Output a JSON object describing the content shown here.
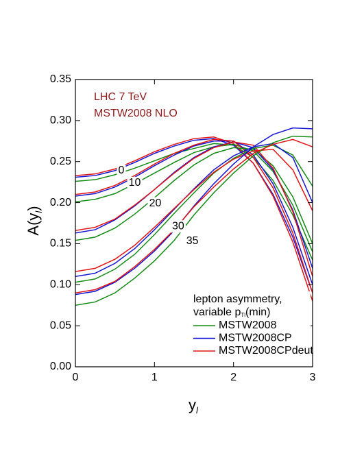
{
  "chart_data": {
    "type": "line",
    "annotations": [
      "LHC 7 TeV",
      "MSTW2008 NLO"
    ],
    "x_label": {
      "main": "y",
      "sub": "l"
    },
    "y_label": {
      "main": "A(y",
      "sub": "l",
      "end": ")"
    },
    "legend_title": [
      "lepton asymmetry,",
      "variable p",
      "Tl",
      "(min)"
    ],
    "curve_labels": [
      {
        "text": "0",
        "x": 0.58,
        "y": 0.239
      },
      {
        "text": "10",
        "x": 0.75,
        "y": 0.224
      },
      {
        "text": "20",
        "x": 1.01,
        "y": 0.199
      },
      {
        "text": "30",
        "x": 1.3,
        "y": 0.171
      },
      {
        "text": "35",
        "x": 1.48,
        "y": 0.153
      }
    ],
    "x": [
      0,
      0.25,
      0.5,
      0.75,
      1,
      1.25,
      1.5,
      1.75,
      2,
      2.25,
      2.5,
      2.75,
      3
    ],
    "xlim": [
      0,
      3
    ],
    "xticks": [
      0,
      1,
      2,
      3
    ],
    "ylim": [
      0,
      0.35
    ],
    "yticks": [
      {
        "value": 0,
        "label": "0.00"
      },
      {
        "value": 0.05,
        "label": "0.05"
      },
      {
        "value": 0.1,
        "label": "0.10"
      },
      {
        "value": 0.15,
        "label": "0.15"
      },
      {
        "value": 0.2,
        "label": "0.20"
      },
      {
        "value": 0.25,
        "label": "0.25"
      },
      {
        "value": 0.3,
        "label": "0.30"
      },
      {
        "value": 0.35,
        "label": "0.35"
      }
    ],
    "series": [
      {
        "name": "MSTW2008",
        "color": "#138a13",
        "values": [
          0.226,
          0.228,
          0.234,
          0.242,
          0.251,
          0.26,
          0.266,
          0.272,
          0.27,
          0.255,
          0.227,
          0.185,
          0.13
        ]
      },
      {
        "name": "MSTW2008CP",
        "color": "#1414d2",
        "values": [
          0.231,
          0.233,
          0.239,
          0.249,
          0.26,
          0.269,
          0.276,
          0.278,
          0.27,
          0.248,
          0.21,
          0.158,
          0.09
        ]
      },
      {
        "name": "MSTW2008CPdeut",
        "color": "#e01414",
        "values": [
          0.233,
          0.235,
          0.241,
          0.251,
          0.262,
          0.271,
          0.278,
          0.28,
          0.272,
          0.248,
          0.208,
          0.152,
          0.08
        ]
      },
      {
        "name": "MSTW2008",
        "color": "#138a13",
        "values": [
          0.201,
          0.204,
          0.211,
          0.223,
          0.236,
          0.249,
          0.261,
          0.268,
          0.271,
          0.263,
          0.238,
          0.197,
          0.14
        ]
      },
      {
        "name": "MSTW2008CP",
        "color": "#1414d2",
        "values": [
          0.208,
          0.211,
          0.219,
          0.231,
          0.245,
          0.258,
          0.269,
          0.275,
          0.275,
          0.258,
          0.223,
          0.17,
          0.1
        ]
      },
      {
        "name": "MSTW2008CPdeut",
        "color": "#e01414",
        "values": [
          0.21,
          0.213,
          0.221,
          0.233,
          0.247,
          0.26,
          0.27,
          0.277,
          0.275,
          0.255,
          0.218,
          0.163,
          0.09
        ]
      },
      {
        "name": "MSTW2008",
        "color": "#138a13",
        "values": [
          0.154,
          0.158,
          0.169,
          0.186,
          0.206,
          0.227,
          0.246,
          0.26,
          0.267,
          0.265,
          0.245,
          0.207,
          0.15
        ]
      },
      {
        "name": "MSTW2008CP",
        "color": "#1414d2",
        "values": [
          0.163,
          0.167,
          0.179,
          0.196,
          0.216,
          0.237,
          0.255,
          0.268,
          0.274,
          0.267,
          0.24,
          0.191,
          0.12
        ]
      },
      {
        "name": "MSTW2008CPdeut",
        "color": "#e01414",
        "values": [
          0.166,
          0.17,
          0.18,
          0.197,
          0.216,
          0.236,
          0.254,
          0.267,
          0.274,
          0.27,
          0.242,
          0.189,
          0.11
        ]
      },
      {
        "name": "MSTW2008",
        "color": "#138a13",
        "values": [
          0.103,
          0.107,
          0.119,
          0.137,
          0.161,
          0.187,
          0.212,
          0.236,
          0.254,
          0.266,
          0.27,
          0.258,
          0.22
        ]
      },
      {
        "name": "MSTW2008CP",
        "color": "#1414d2",
        "values": [
          0.11,
          0.114,
          0.126,
          0.144,
          0.167,
          0.192,
          0.217,
          0.24,
          0.257,
          0.268,
          0.272,
          0.255,
          0.2
        ]
      },
      {
        "name": "MSTW2008CPdeut",
        "color": "#e01414",
        "values": [
          0.116,
          0.12,
          0.131,
          0.148,
          0.17,
          0.193,
          0.216,
          0.237,
          0.253,
          0.263,
          0.265,
          0.24,
          0.19
        ]
      },
      {
        "name": "MSTW2008",
        "color": "#138a13",
        "values": [
          0.075,
          0.079,
          0.09,
          0.108,
          0.129,
          0.154,
          0.185,
          0.212,
          0.236,
          0.257,
          0.273,
          0.281,
          0.28
        ]
      },
      {
        "name": "MSTW2008CP",
        "color": "#1414d2",
        "values": [
          0.088,
          0.092,
          0.103,
          0.12,
          0.141,
          0.166,
          0.196,
          0.223,
          0.247,
          0.268,
          0.283,
          0.291,
          0.29
        ]
      },
      {
        "name": "MSTW2008CPdeut",
        "color": "#e01414",
        "values": [
          0.09,
          0.094,
          0.104,
          0.122,
          0.143,
          0.167,
          0.195,
          0.219,
          0.241,
          0.26,
          0.271,
          0.277,
          0.268
        ]
      }
    ]
  }
}
